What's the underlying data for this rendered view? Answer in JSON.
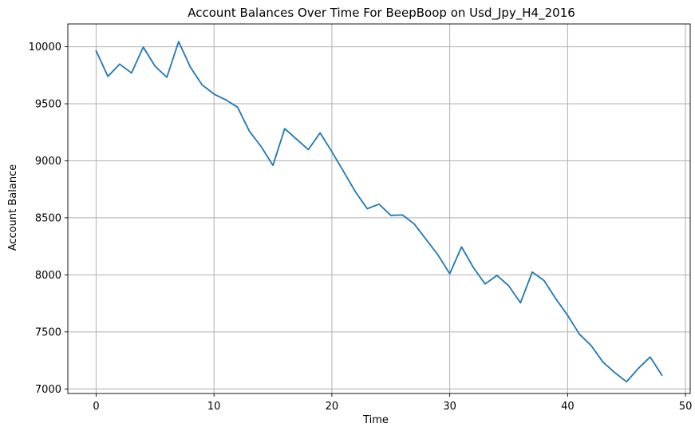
{
  "chart_data": {
    "type": "line",
    "title": "Account Balances Over Time For BeepBoop on Usd_Jpy_H4_2016",
    "xlabel": "Time",
    "ylabel": "Account Balance",
    "xlim": [
      -2.4,
      50.4
    ],
    "ylim": [
      6960,
      10200
    ],
    "xticks": [
      0,
      10,
      20,
      30,
      40,
      50
    ],
    "yticks": [
      7000,
      7500,
      8000,
      8500,
      9000,
      9500,
      10000
    ],
    "grid": true,
    "line_color": "#1f77b4",
    "series": [
      {
        "x": [
          0,
          1,
          2,
          3,
          4,
          5,
          6,
          7,
          8,
          9,
          10,
          11,
          12,
          13,
          14,
          15,
          16,
          17,
          18,
          19,
          20,
          21,
          22,
          23,
          24,
          25,
          26,
          27,
          28,
          29,
          30,
          31,
          32,
          33,
          34,
          35,
          36,
          37,
          38,
          39,
          40,
          41,
          42,
          43,
          44,
          45,
          46,
          47,
          48
        ],
        "values": [
          9965,
          9740,
          9848,
          9770,
          9997,
          9830,
          9732,
          10045,
          9820,
          9665,
          9585,
          9535,
          9470,
          9260,
          9125,
          8960,
          9282,
          9190,
          9098,
          9245,
          9080,
          8905,
          8728,
          8580,
          8620,
          8522,
          8525,
          8445,
          8310,
          8175,
          8010,
          8245,
          8065,
          7920,
          7995,
          7905,
          7755,
          8025,
          7950,
          7790,
          7645,
          7480,
          7380,
          7235,
          7143,
          7063,
          7180,
          7280,
          7120
        ]
      }
    ]
  }
}
